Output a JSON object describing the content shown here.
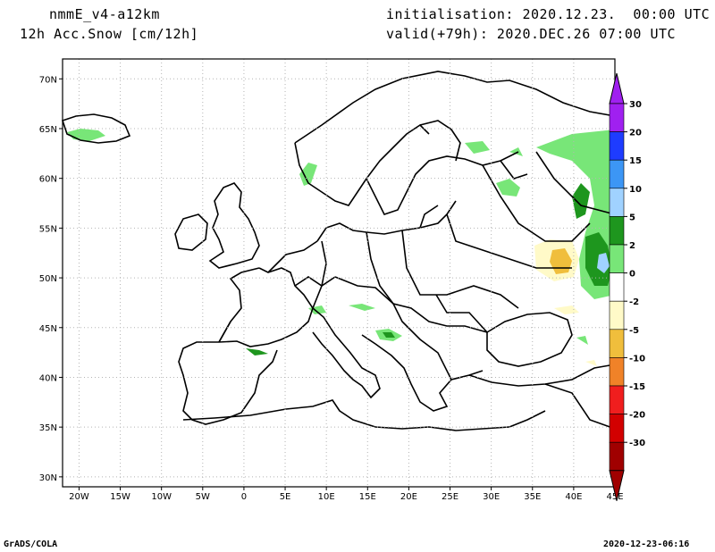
{
  "header": {
    "model": "nmmE_v4-a12km",
    "field": "12h Acc.Snow [cm/12h]",
    "init": "initialisation: 2020.12.23.  00:00 UTC",
    "valid": "valid(+79h): 2020.DEC.26 07:00 UTC"
  },
  "footer": {
    "software": "GrADS/COLA",
    "stamp": "2020-12-23-06:16"
  },
  "map": {
    "lon_range": [
      -22,
      45
    ],
    "lat_range": [
      29,
      72
    ],
    "lon_labels": [
      "20W",
      "15W",
      "10W",
      "5W",
      "0",
      "5E",
      "10E",
      "15E",
      "20E",
      "25E",
      "30E",
      "35E",
      "40E",
      "45E"
    ],
    "lon_values": [
      -20,
      -15,
      -10,
      -5,
      0,
      5,
      10,
      15,
      20,
      25,
      30,
      35,
      40,
      45
    ],
    "lat_labels": [
      "30N",
      "35N",
      "40N",
      "45N",
      "50N",
      "55N",
      "60N",
      "65N",
      "70N"
    ],
    "lat_values": [
      30,
      35,
      40,
      45,
      50,
      55,
      60,
      65,
      70
    ],
    "grid": true
  },
  "colorbar": {
    "labels": [
      "30",
      "20",
      "15",
      "10",
      "5",
      "2",
      "0",
      "-2",
      "-5",
      "-10",
      "-15",
      "-20",
      "-30"
    ],
    "colors": [
      "#a020f0",
      "#1e3cff",
      "#3c96f5",
      "#a0d2ff",
      "#1e961e",
      "#78e678",
      "#ffffff",
      "#fffac8",
      "#f0be3c",
      "#f08228",
      "#f01e1e",
      "#d20000",
      "#a00000"
    ],
    "top_arrow_color": "#a020f0",
    "bottom_arrow_color": "#a00000"
  },
  "colors": {
    "snow_light": "#78e678",
    "snow_medium": "#1e961e",
    "snow_heavy": "#a0d2ff",
    "melt_light": "#fffac8",
    "melt_medium": "#f0be3c"
  }
}
